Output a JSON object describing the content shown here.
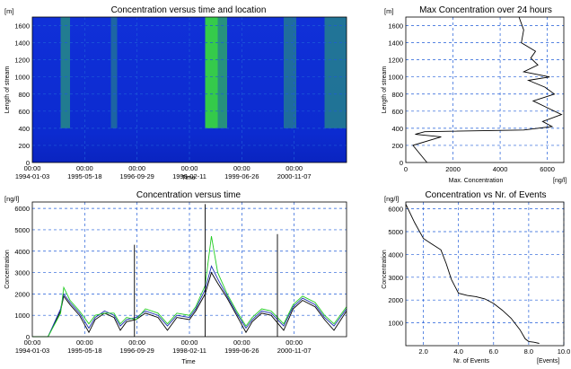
{
  "colors": {
    "grid": "#1e5bd8",
    "line1": "#000000",
    "line2": "#1a2fb0",
    "line3": "#22cc22",
    "heatmap_low": "#0c2bd0",
    "heatmap_high": "#38e038"
  },
  "chart_data": [
    {
      "type": "heatmap",
      "title": "Concentration versus time and location",
      "xlabel": "Time",
      "ylabel": "Length of stream",
      "yunit": "[m]",
      "x_ticks": [
        [
          "00:00",
          "1994-01-03"
        ],
        [
          "00:00",
          "1995-05-18"
        ],
        [
          "00:00",
          "1996-09-29"
        ],
        [
          "00:00",
          "1998-02-11"
        ],
        [
          "00:00",
          "1999-06-26"
        ],
        [
          "00:00",
          "2000-11-07"
        ]
      ],
      "y_ticks": [
        "0",
        "200",
        "400",
        "600",
        "800",
        "1000",
        "1200",
        "1400",
        "1600"
      ],
      "ylim": [
        0,
        1700
      ],
      "grid": true,
      "bands": [
        {
          "start": 0.09,
          "end": 0.12,
          "level": 0.45
        },
        {
          "start": 0.25,
          "end": 0.27,
          "level": 0.3
        },
        {
          "start": 0.55,
          "end": 0.59,
          "level": 1.0
        },
        {
          "start": 0.59,
          "end": 0.62,
          "level": 0.6
        },
        {
          "start": 0.8,
          "end": 0.84,
          "level": 0.35
        },
        {
          "start": 0.93,
          "end": 1.0,
          "level": 0.4
        }
      ]
    },
    {
      "type": "line",
      "title": "Max Concentration over 24 hours",
      "xlabel": "Max. Concentration",
      "xunit": "[ng/l]",
      "yunit": "[m]",
      "ylabel": "Length of stream",
      "x_ticks": [
        "0",
        "2000",
        "4000",
        "6000"
      ],
      "y_ticks": [
        "0",
        "200",
        "400",
        "600",
        "800",
        "1000",
        "1200",
        "1400",
        "1600"
      ],
      "xlim": [
        0,
        6700
      ],
      "ylim": [
        0,
        1700
      ],
      "grid": true,
      "series": [
        {
          "x": [
            900,
            600,
            300,
            1500,
            400,
            800,
            5000,
            6200,
            5800,
            6600,
            6000,
            5400,
            6300,
            5900,
            5200,
            6100,
            5000,
            5600,
            5300,
            5500,
            4900,
            5000,
            4800
          ],
          "y": [
            0,
            100,
            200,
            300,
            330,
            360,
            380,
            420,
            480,
            560,
            640,
            720,
            800,
            880,
            960,
            1000,
            1060,
            1140,
            1220,
            1300,
            1400,
            1550,
            1700
          ]
        }
      ]
    },
    {
      "type": "line",
      "title": "Concentration versus time",
      "xlabel": "Time",
      "ylabel": "Concentration",
      "yunit": "[ng/l]",
      "x_ticks": [
        [
          "00:00",
          "1994-01-03"
        ],
        [
          "00:00",
          "1995-05-18"
        ],
        [
          "00:00",
          "1996-09-29"
        ],
        [
          "00:00",
          "1998-02-11"
        ],
        [
          "00:00",
          "1999-06-26"
        ],
        [
          "00:00",
          "2000-11-07"
        ]
      ],
      "y_ticks": [
        "0",
        "1000",
        "2000",
        "3000",
        "4000",
        "5000",
        "6000"
      ],
      "ylim": [
        0,
        6300
      ],
      "grid": true,
      "series": [
        {
          "x": [
            0,
            0.05,
            0.09,
            0.1,
            0.12,
            0.15,
            0.18,
            0.2,
            0.23,
            0.26,
            0.28,
            0.3,
            0.33,
            0.36,
            0.4,
            0.43,
            0.46,
            0.5,
            0.52,
            0.55,
            0.57,
            0.59,
            0.62,
            0.65,
            0.68,
            0.7,
            0.73,
            0.76,
            0.8,
            0.83,
            0.86,
            0.9,
            0.93,
            0.96,
            1.0
          ],
          "y": [
            0,
            0,
            1200,
            1900,
            1500,
            1000,
            200,
            800,
            1100,
            900,
            300,
            700,
            800,
            1100,
            900,
            300,
            900,
            800,
            1200,
            2000,
            3000,
            2500,
            1800,
            1000,
            200,
            700,
            1100,
            1000,
            300,
            1300,
            1700,
            1400,
            800,
            300,
            1200
          ]
        },
        {
          "x": [
            0,
            0.05,
            0.09,
            0.1,
            0.12,
            0.15,
            0.18,
            0.2,
            0.23,
            0.26,
            0.28,
            0.3,
            0.33,
            0.36,
            0.4,
            0.43,
            0.46,
            0.5,
            0.52,
            0.55,
            0.57,
            0.59,
            0.62,
            0.65,
            0.68,
            0.7,
            0.73,
            0.76,
            0.8,
            0.83,
            0.86,
            0.9,
            0.93,
            0.96,
            1.0
          ],
          "y": [
            0,
            0,
            1300,
            2000,
            1600,
            1100,
            400,
            900,
            1200,
            1000,
            500,
            800,
            900,
            1200,
            1000,
            500,
            1000,
            900,
            1300,
            2200,
            3300,
            2700,
            1900,
            1100,
            400,
            800,
            1200,
            1100,
            500,
            1400,
            1800,
            1500,
            900,
            500,
            1300
          ]
        },
        {
          "x": [
            0,
            0.05,
            0.09,
            0.1,
            0.12,
            0.15,
            0.18,
            0.2,
            0.23,
            0.26,
            0.28,
            0.3,
            0.33,
            0.36,
            0.4,
            0.43,
            0.46,
            0.5,
            0.52,
            0.55,
            0.57,
            0.59,
            0.62,
            0.65,
            0.68,
            0.7,
            0.73,
            0.76,
            0.8,
            0.83,
            0.86,
            0.9,
            0.93,
            0.96,
            1.0
          ],
          "y": [
            0,
            0,
            1100,
            2300,
            1700,
            1200,
            600,
            1000,
            1100,
            1100,
            600,
            900,
            800,
            1300,
            1100,
            600,
            1100,
            1000,
            1400,
            2400,
            4700,
            3000,
            2000,
            1200,
            500,
            900,
            1300,
            1200,
            600,
            1500,
            1900,
            1600,
            1000,
            600,
            1400
          ]
        }
      ],
      "spikes": [
        {
          "x": 0.325,
          "y": 4300
        },
        {
          "x": 0.55,
          "y": 6200
        },
        {
          "x": 0.78,
          "y": 4800
        }
      ]
    },
    {
      "type": "line",
      "title": "Concentration vs Nr. of Events",
      "xlabel": "Nr. of Events",
      "xunit": "[Events]",
      "ylabel": "Concentration",
      "yunit": "[ng/l]",
      "x_ticks": [
        "2.0",
        "4.0",
        "6.0",
        "8.0",
        "10.0"
      ],
      "y_ticks": [
        "1000",
        "2000",
        "3000",
        "4000",
        "5000",
        "6000"
      ],
      "xlim": [
        1,
        10
      ],
      "ylim": [
        0,
        6300
      ],
      "grid": true,
      "series": [
        {
          "x": [
            1.0,
            1.5,
            2.0,
            2.5,
            3.0,
            3.3,
            3.6,
            4.0,
            4.5,
            5.0,
            5.5,
            6.0,
            6.5,
            7.0,
            7.5,
            7.8,
            8.0,
            8.3,
            8.6
          ],
          "y": [
            6200,
            5400,
            4700,
            4450,
            4200,
            3600,
            2900,
            2300,
            2200,
            2150,
            2050,
            1850,
            1550,
            1200,
            700,
            300,
            180,
            150,
            100
          ]
        }
      ]
    }
  ]
}
